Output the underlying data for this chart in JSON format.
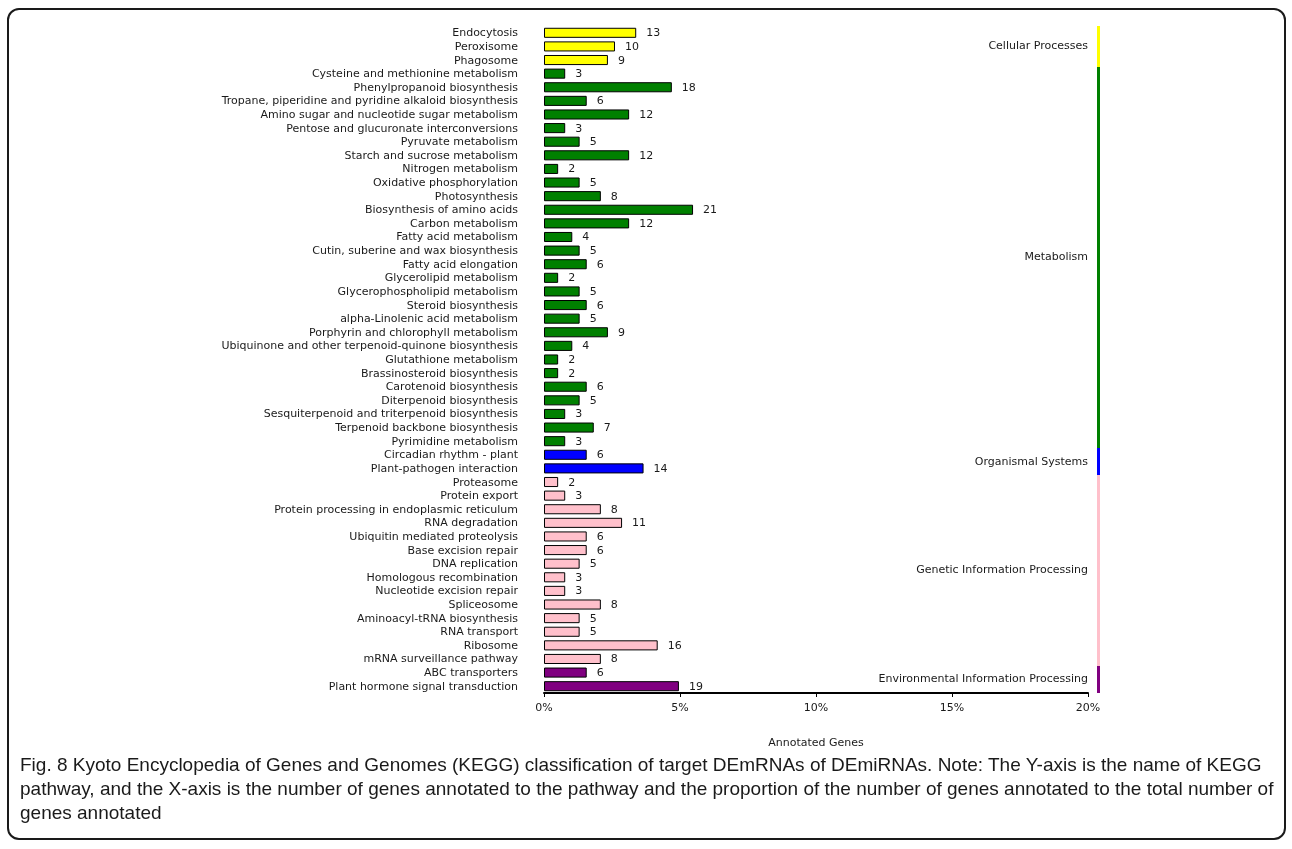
{
  "chart_data": {
    "type": "bar",
    "orientation": "horizontal",
    "categories": [
      "Endocytosis",
      "Peroxisome",
      "Phagosome",
      "Cysteine and methionine metabolism",
      "Phenylpropanoid biosynthesis",
      "Tropane, piperidine and pyridine alkaloid biosynthesis",
      "Amino sugar and nucleotide sugar metabolism",
      "Pentose and glucuronate interconversions",
      "Pyruvate metabolism",
      "Starch and sucrose metabolism",
      "Nitrogen metabolism",
      "Oxidative phosphorylation",
      "Photosynthesis",
      "Biosynthesis of amino acids",
      "Carbon metabolism",
      "Fatty acid metabolism",
      "Cutin, suberine and wax biosynthesis",
      "Fatty acid elongation",
      "Glycerolipid metabolism",
      "Glycerophospholipid metabolism",
      "Steroid biosynthesis",
      "alpha-Linolenic acid metabolism",
      "Porphyrin and chlorophyll metabolism",
      "Ubiquinone and other terpenoid-quinone biosynthesis",
      "Glutathione metabolism",
      "Brassinosteroid biosynthesis",
      "Carotenoid biosynthesis",
      "Diterpenoid biosynthesis",
      "Sesquiterpenoid and triterpenoid biosynthesis",
      "Terpenoid backbone biosynthesis",
      "Pyrimidine metabolism",
      "Circadian rhythm - plant",
      "Plant-pathogen interaction",
      "Proteasome",
      "Protein export",
      "Protein processing in endoplasmic reticulum",
      "RNA degradation",
      "Ubiquitin mediated proteolysis",
      "Base excision repair",
      "DNA replication",
      "Homologous recombination",
      "Nucleotide excision repair",
      "Spliceosome",
      "Aminoacyl-tRNA biosynthesis",
      "RNA transport",
      "Ribosome",
      "mRNA surveillance pathway",
      "ABC transporters",
      "Plant hormone signal transduction"
    ],
    "values": [
      3.39,
      2.61,
      2.35,
      0.78,
      4.7,
      1.57,
      3.13,
      0.78,
      1.31,
      3.13,
      0.52,
      1.31,
      2.09,
      5.48,
      3.13,
      1.04,
      1.31,
      1.57,
      0.52,
      1.31,
      1.57,
      1.31,
      2.35,
      1.04,
      0.52,
      0.52,
      1.57,
      1.31,
      0.78,
      1.83,
      0.78,
      1.57,
      3.66,
      0.52,
      0.78,
      2.09,
      2.87,
      1.57,
      1.57,
      1.31,
      0.78,
      0.78,
      2.09,
      1.31,
      1.31,
      4.18,
      2.09,
      1.57,
      4.96
    ],
    "colors": [
      "#ffff00",
      "#ffff00",
      "#ffff00",
      "#008000",
      "#008000",
      "#008000",
      "#008000",
      "#008000",
      "#008000",
      "#008000",
      "#008000",
      "#008000",
      "#008000",
      "#008000",
      "#008000",
      "#008000",
      "#008000",
      "#008000",
      "#008000",
      "#008000",
      "#008000",
      "#008000",
      "#008000",
      "#008000",
      "#008000",
      "#008000",
      "#008000",
      "#008000",
      "#008000",
      "#008000",
      "#008000",
      "#0000ff",
      "#0000ff",
      "#ffc0cb",
      "#ffc0cb",
      "#ffc0cb",
      "#ffc0cb",
      "#ffc0cb",
      "#ffc0cb",
      "#ffc0cb",
      "#ffc0cb",
      "#ffc0cb",
      "#ffc0cb",
      "#ffc0cb",
      "#ffc0cb",
      "#ffc0cb",
      "#ffc0cb",
      "#800080",
      "#800080"
    ],
    "xlabel": "Annotated Genes",
    "xlim": [
      0,
      20
    ],
    "xticks": [
      {
        "value": 0,
        "label": "0%"
      },
      {
        "value": 5,
        "label": "5%"
      },
      {
        "value": 10,
        "label": "10%"
      },
      {
        "value": 15,
        "label": "15%"
      },
      {
        "value": 20,
        "label": "20%"
      }
    ],
    "annotations": [
      {
        "text": "13",
        "x": 3.39,
        "y": "Endocytosis"
      },
      {
        "text": "10",
        "x": 2.61,
        "y": "Peroxisome"
      },
      {
        "text": "9",
        "x": 2.35,
        "y": "Phagosome"
      },
      {
        "text": "3",
        "x": 0.78,
        "y": "Cysteine and methionine metabolism"
      },
      {
        "text": "18",
        "x": 4.7,
        "y": "Phenylpropanoid biosynthesis"
      },
      {
        "text": "6",
        "x": 1.57,
        "y": "Tropane, piperidine and pyridine alkaloid biosynthesis"
      },
      {
        "text": "12",
        "x": 3.13,
        "y": "Amino sugar and nucleotide sugar metabolism"
      },
      {
        "text": "3",
        "x": 0.78,
        "y": "Pentose and glucuronate interconversions"
      },
      {
        "text": "5",
        "x": 1.31,
        "y": "Pyruvate metabolism"
      },
      {
        "text": "12",
        "x": 3.13,
        "y": "Starch and sucrose metabolism"
      },
      {
        "text": "2",
        "x": 0.52,
        "y": "Nitrogen metabolism"
      },
      {
        "text": "5",
        "x": 1.31,
        "y": "Oxidative phosphorylation"
      },
      {
        "text": "8",
        "x": 2.09,
        "y": "Photosynthesis"
      },
      {
        "text": "21",
        "x": 5.48,
        "y": "Biosynthesis of amino acids"
      },
      {
        "text": "12",
        "x": 3.13,
        "y": "Carbon metabolism"
      },
      {
        "text": "4",
        "x": 1.04,
        "y": "Fatty acid metabolism"
      },
      {
        "text": "5",
        "x": 1.31,
        "y": "Cutin, suberine and wax biosynthesis"
      },
      {
        "text": "6",
        "x": 1.57,
        "y": "Fatty acid elongation"
      },
      {
        "text": "2",
        "x": 0.52,
        "y": "Glycerolipid metabolism"
      },
      {
        "text": "5",
        "x": 1.31,
        "y": "Glycerophospholipid metabolism"
      },
      {
        "text": "6",
        "x": 1.57,
        "y": "Steroid biosynthesis"
      },
      {
        "text": "5",
        "x": 1.31,
        "y": "alpha-Linolenic acid metabolism"
      },
      {
        "text": "9",
        "x": 2.35,
        "y": "Porphyrin and chlorophyll metabolism"
      },
      {
        "text": "4",
        "x": 1.04,
        "y": "Ubiquinone and other terpenoid-quinone biosynthesis"
      },
      {
        "text": "2",
        "x": 0.52,
        "y": "Glutathione metabolism"
      },
      {
        "text": "2",
        "x": 0.52,
        "y": "Brassinosteroid biosynthesis"
      },
      {
        "text": "6",
        "x": 1.57,
        "y": "Carotenoid biosynthesis"
      },
      {
        "text": "5",
        "x": 1.31,
        "y": "Diterpenoid biosynthesis"
      },
      {
        "text": "3",
        "x": 0.78,
        "y": "Sesquiterpenoid and triterpenoid biosynthesis"
      },
      {
        "text": "7",
        "x": 1.83,
        "y": "Terpenoid backbone biosynthesis"
      },
      {
        "text": "3",
        "x": 0.78,
        "y": "Pyrimidine metabolism"
      },
      {
        "text": "6",
        "x": 1.57,
        "y": "Circadian rhythm - plant"
      },
      {
        "text": "14",
        "x": 3.66,
        "y": "Plant-pathogen interaction"
      },
      {
        "text": "2",
        "x": 0.52,
        "y": "Proteasome"
      },
      {
        "text": "3",
        "x": 0.78,
        "y": "Protein export"
      },
      {
        "text": "8",
        "x": 2.09,
        "y": "Protein processing in endoplasmic reticulum"
      },
      {
        "text": "11",
        "x": 2.87,
        "y": "RNA degradation"
      },
      {
        "text": "6",
        "x": 1.57,
        "y": "Ubiquitin mediated proteolysis"
      },
      {
        "text": "6",
        "x": 1.57,
        "y": "Base excision repair"
      },
      {
        "text": "5",
        "x": 1.31,
        "y": "DNA replication"
      },
      {
        "text": "3",
        "x": 0.78,
        "y": "Homologous recombination"
      },
      {
        "text": "3",
        "x": 0.78,
        "y": "Nucleotide excision repair"
      },
      {
        "text": "8",
        "x": 2.09,
        "y": "Spliceosome"
      },
      {
        "text": "5",
        "x": 1.31,
        "y": "Aminoacyl-tRNA biosynthesis"
      },
      {
        "text": "5",
        "x": 1.31,
        "y": "RNA transport"
      },
      {
        "text": "16",
        "x": 4.18,
        "y": "Ribosome"
      },
      {
        "text": "8",
        "x": 2.09,
        "y": "mRNA surveillance pathway"
      },
      {
        "text": "6",
        "x": 1.57,
        "y": "ABC transporters"
      },
      {
        "text": "19",
        "x": 4.96,
        "y": "Plant hormone signal transduction"
      },
      "Cellular Processes",
      "Metabolism",
      "Organismal Systems",
      "Genetic Information Processing",
      "Environmental Information Processing",
      "Fig. 8 Kyoto Encyclopedia of Genes and Genomes (KEGG) classification of target DEmRNAs of DEmiRNAs. Note: The Y-axis is the name of KEGG pathway, and the X-axis is the number of genes annotated to the pathway and the proportion of the number of genes annotated to the total number of genes annotated"
    ]
  }
}
